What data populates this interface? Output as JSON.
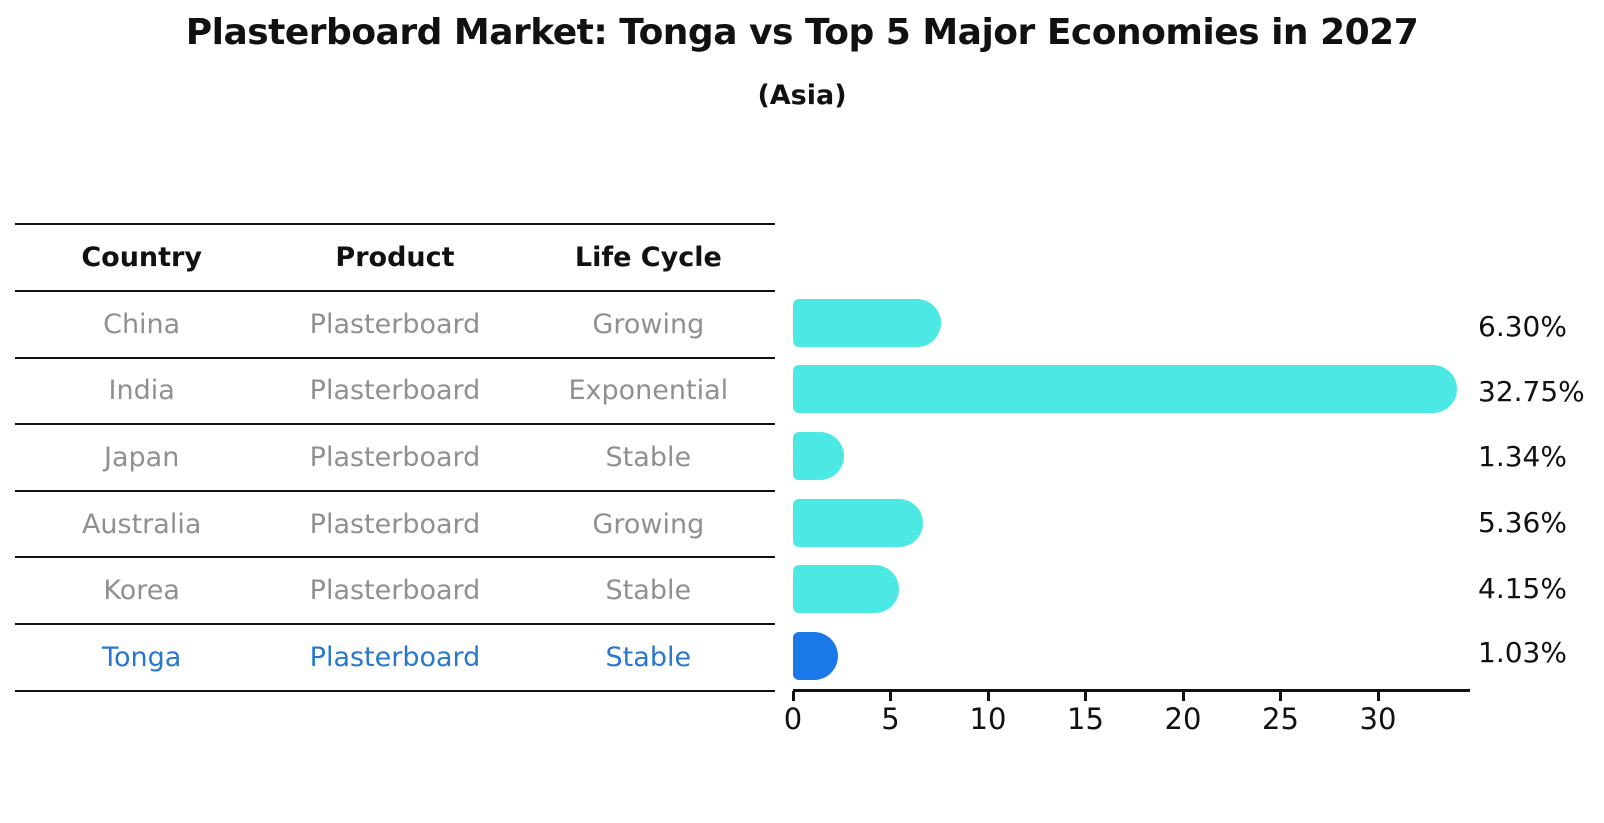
{
  "page": {
    "title": "Plasterboard Market: Tonga vs Top 5 Major Economies in 2027",
    "subtitle": "(Asia)"
  },
  "table": {
    "headers": [
      "Country",
      "Product",
      "Life Cycle"
    ],
    "rows": [
      {
        "country": "China",
        "product": "Plasterboard",
        "life_cycle": "Growing",
        "highlighted": false
      },
      {
        "country": "India",
        "product": "Plasterboard",
        "life_cycle": "Exponential",
        "highlighted": false
      },
      {
        "country": "Japan",
        "product": "Plasterboard",
        "life_cycle": "Stable",
        "highlighted": false
      },
      {
        "country": "Australia",
        "product": "Plasterboard",
        "life_cycle": "Growing",
        "highlighted": false
      },
      {
        "country": "Korea",
        "product": "Plasterboard",
        "life_cycle": "Stable",
        "highlighted": false
      },
      {
        "country": "Tonga",
        "product": "Plasterboard",
        "life_cycle": "Stable",
        "highlighted": true
      }
    ]
  },
  "chart_data": {
    "type": "bar",
    "orientation": "horizontal",
    "title": "Plasterboard Market: Tonga vs Top 5 Major Economies in 2027",
    "subtitle": "(Asia)",
    "categories": [
      "China",
      "India",
      "Japan",
      "Australia",
      "Korea",
      "Tonga"
    ],
    "values": [
      6.3,
      32.75,
      1.34,
      5.36,
      4.15,
      1.03
    ],
    "value_labels": [
      "6.30%",
      "32.75%",
      "1.34%",
      "5.36%",
      "4.15%",
      "1.03%"
    ],
    "x_ticks": [
      0,
      5,
      10,
      15,
      20,
      25,
      30
    ],
    "xlim": [
      0,
      34.7
    ],
    "grid": false,
    "legend": false,
    "bar_color": "#4BE8E4",
    "highlight_bar_color": "#1B78E8",
    "highlight_text_color": "#2878CE",
    "highlight_index": 5
  }
}
